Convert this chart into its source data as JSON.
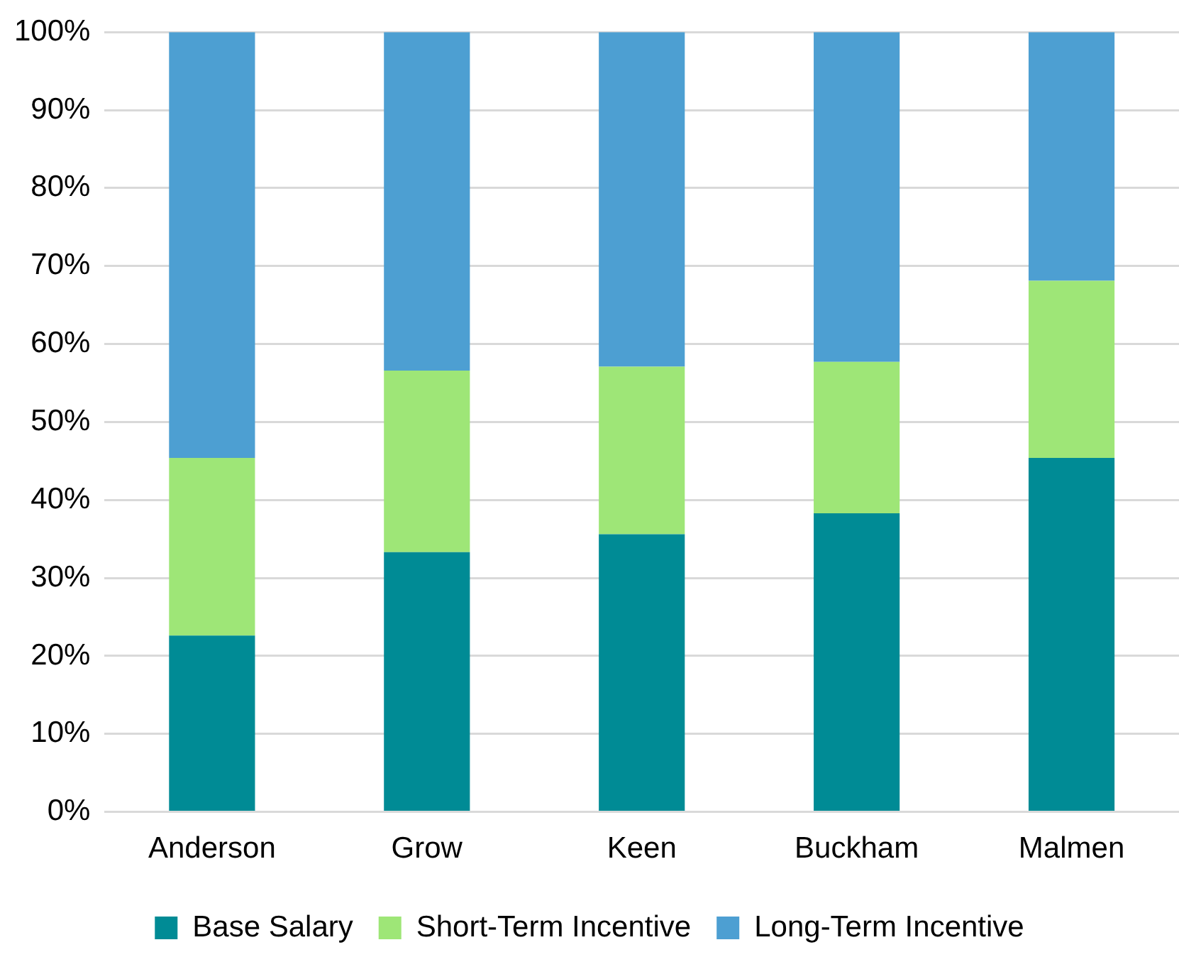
{
  "chart_data": {
    "type": "bar",
    "stacked": true,
    "categories": [
      "Anderson",
      "Grow",
      "Keen",
      "Buckham",
      "Malmen"
    ],
    "series": [
      {
        "name": "Base Salary",
        "color": "#008b95",
        "values": [
          22.6,
          33.3,
          35.6,
          38.3,
          45.4
        ]
      },
      {
        "name": "Short-Term Incentive",
        "color": "#9ee677",
        "values": [
          22.8,
          23.3,
          21.5,
          19.4,
          22.7
        ]
      },
      {
        "name": "Long-Term Incentive",
        "color": "#4d9fd2",
        "values": [
          54.6,
          43.4,
          42.9,
          42.3,
          31.9
        ]
      }
    ],
    "ylim": [
      0,
      100
    ],
    "yticks": [
      {
        "value": 0,
        "label": "0%"
      },
      {
        "value": 10,
        "label": "10%"
      },
      {
        "value": 20,
        "label": "20%"
      },
      {
        "value": 30,
        "label": "30%"
      },
      {
        "value": 40,
        "label": "40%"
      },
      {
        "value": 50,
        "label": "50%"
      },
      {
        "value": 60,
        "label": "60%"
      },
      {
        "value": 70,
        "label": "70%"
      },
      {
        "value": 80,
        "label": "80%"
      },
      {
        "value": 90,
        "label": "90%"
      },
      {
        "value": 100,
        "label": "100%"
      }
    ],
    "grid": "y",
    "legend": "bottom"
  }
}
